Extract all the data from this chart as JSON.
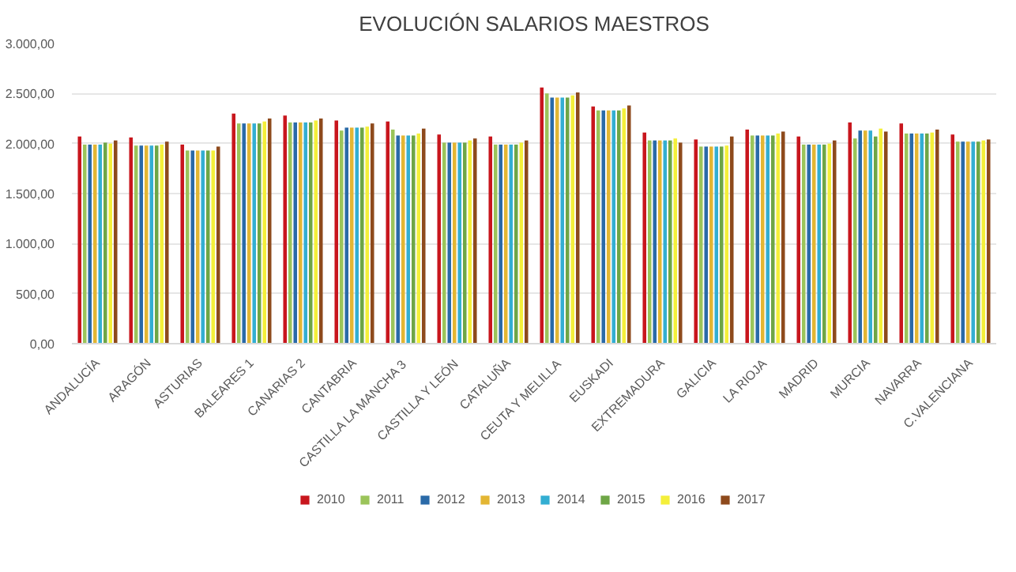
{
  "chart_data": {
    "type": "bar",
    "title": "EVOLUCIÓN SALARIOS MAESTROS",
    "categories": [
      "ANDALUCÍA",
      "ARAGÓN",
      "ASTURIAS",
      "BALEARES 1",
      "CANARIAS 2",
      "CANTABRIA",
      "CASTILLA LA MANCHA 3",
      "CASTILLA Y LEÓN",
      "CATALUÑA",
      "CEUTA Y MELILLA",
      "EUSKADI",
      "EXTREMADURA",
      "GALICIA",
      "LA RIOJA",
      "MADRID",
      "MURCIA",
      "NAVARRA",
      "C.VALENCIANA"
    ],
    "series": [
      {
        "name": "2010",
        "color": "#c8161d",
        "values": [
          2070,
          2060,
          1990,
          2300,
          2280,
          2230,
          2220,
          2090,
          2070,
          2560,
          2370,
          2110,
          2040,
          2140,
          2070,
          2210,
          2200,
          2090
        ]
      },
      {
        "name": "2011",
        "color": "#9bc45a",
        "values": [
          1990,
          1980,
          1930,
          2200,
          2210,
          2130,
          2140,
          2010,
          1990,
          2500,
          2330,
          2030,
          1970,
          2080,
          1990,
          2050,
          2100,
          2020
        ]
      },
      {
        "name": "2012",
        "color": "#2a6aa8",
        "values": [
          1990,
          1980,
          1930,
          2200,
          2210,
          2160,
          2080,
          2010,
          1990,
          2460,
          2330,
          2030,
          1970,
          2080,
          1990,
          2130,
          2100,
          2020
        ]
      },
      {
        "name": "2013",
        "color": "#e3b633",
        "values": [
          1990,
          1980,
          1930,
          2200,
          2210,
          2160,
          2080,
          2010,
          1990,
          2460,
          2330,
          2030,
          1970,
          2080,
          1990,
          2130,
          2100,
          2020
        ]
      },
      {
        "name": "2014",
        "color": "#33aed2",
        "values": [
          1990,
          1980,
          1930,
          2200,
          2210,
          2160,
          2080,
          2010,
          1990,
          2460,
          2330,
          2030,
          1970,
          2080,
          1990,
          2130,
          2100,
          2020
        ]
      },
      {
        "name": "2015",
        "color": "#6ea646",
        "values": [
          2010,
          1980,
          1930,
          2200,
          2210,
          2160,
          2080,
          2010,
          1990,
          2460,
          2330,
          2030,
          1970,
          2080,
          1990,
          2070,
          2100,
          2020
        ]
      },
      {
        "name": "2016",
        "color": "#f4ef3a",
        "values": [
          2000,
          1990,
          1930,
          2220,
          2230,
          2170,
          2100,
          2030,
          2010,
          2480,
          2350,
          2050,
          1980,
          2100,
          2000,
          2150,
          2110,
          2030
        ]
      },
      {
        "name": "2017",
        "color": "#8e4a1c",
        "values": [
          2030,
          2020,
          1970,
          2250,
          2250,
          2200,
          2150,
          2050,
          2030,
          2510,
          2380,
          2010,
          2070,
          2120,
          2030,
          2120,
          2140,
          2040
        ]
      }
    ],
    "ylim": [
      0,
      3000
    ],
    "yticks": [
      {
        "value": 0,
        "label": "0,00"
      },
      {
        "value": 500,
        "label": "500,00"
      },
      {
        "value": 1000,
        "label": "1.000,00"
      },
      {
        "value": 1500,
        "label": "1.500,00"
      },
      {
        "value": 2000,
        "label": "2.000,00"
      },
      {
        "value": 2500,
        "label": "2.500,00"
      },
      {
        "value": 3000,
        "label": "3.000,00"
      }
    ],
    "grid": "y",
    "legend": "bottom"
  }
}
